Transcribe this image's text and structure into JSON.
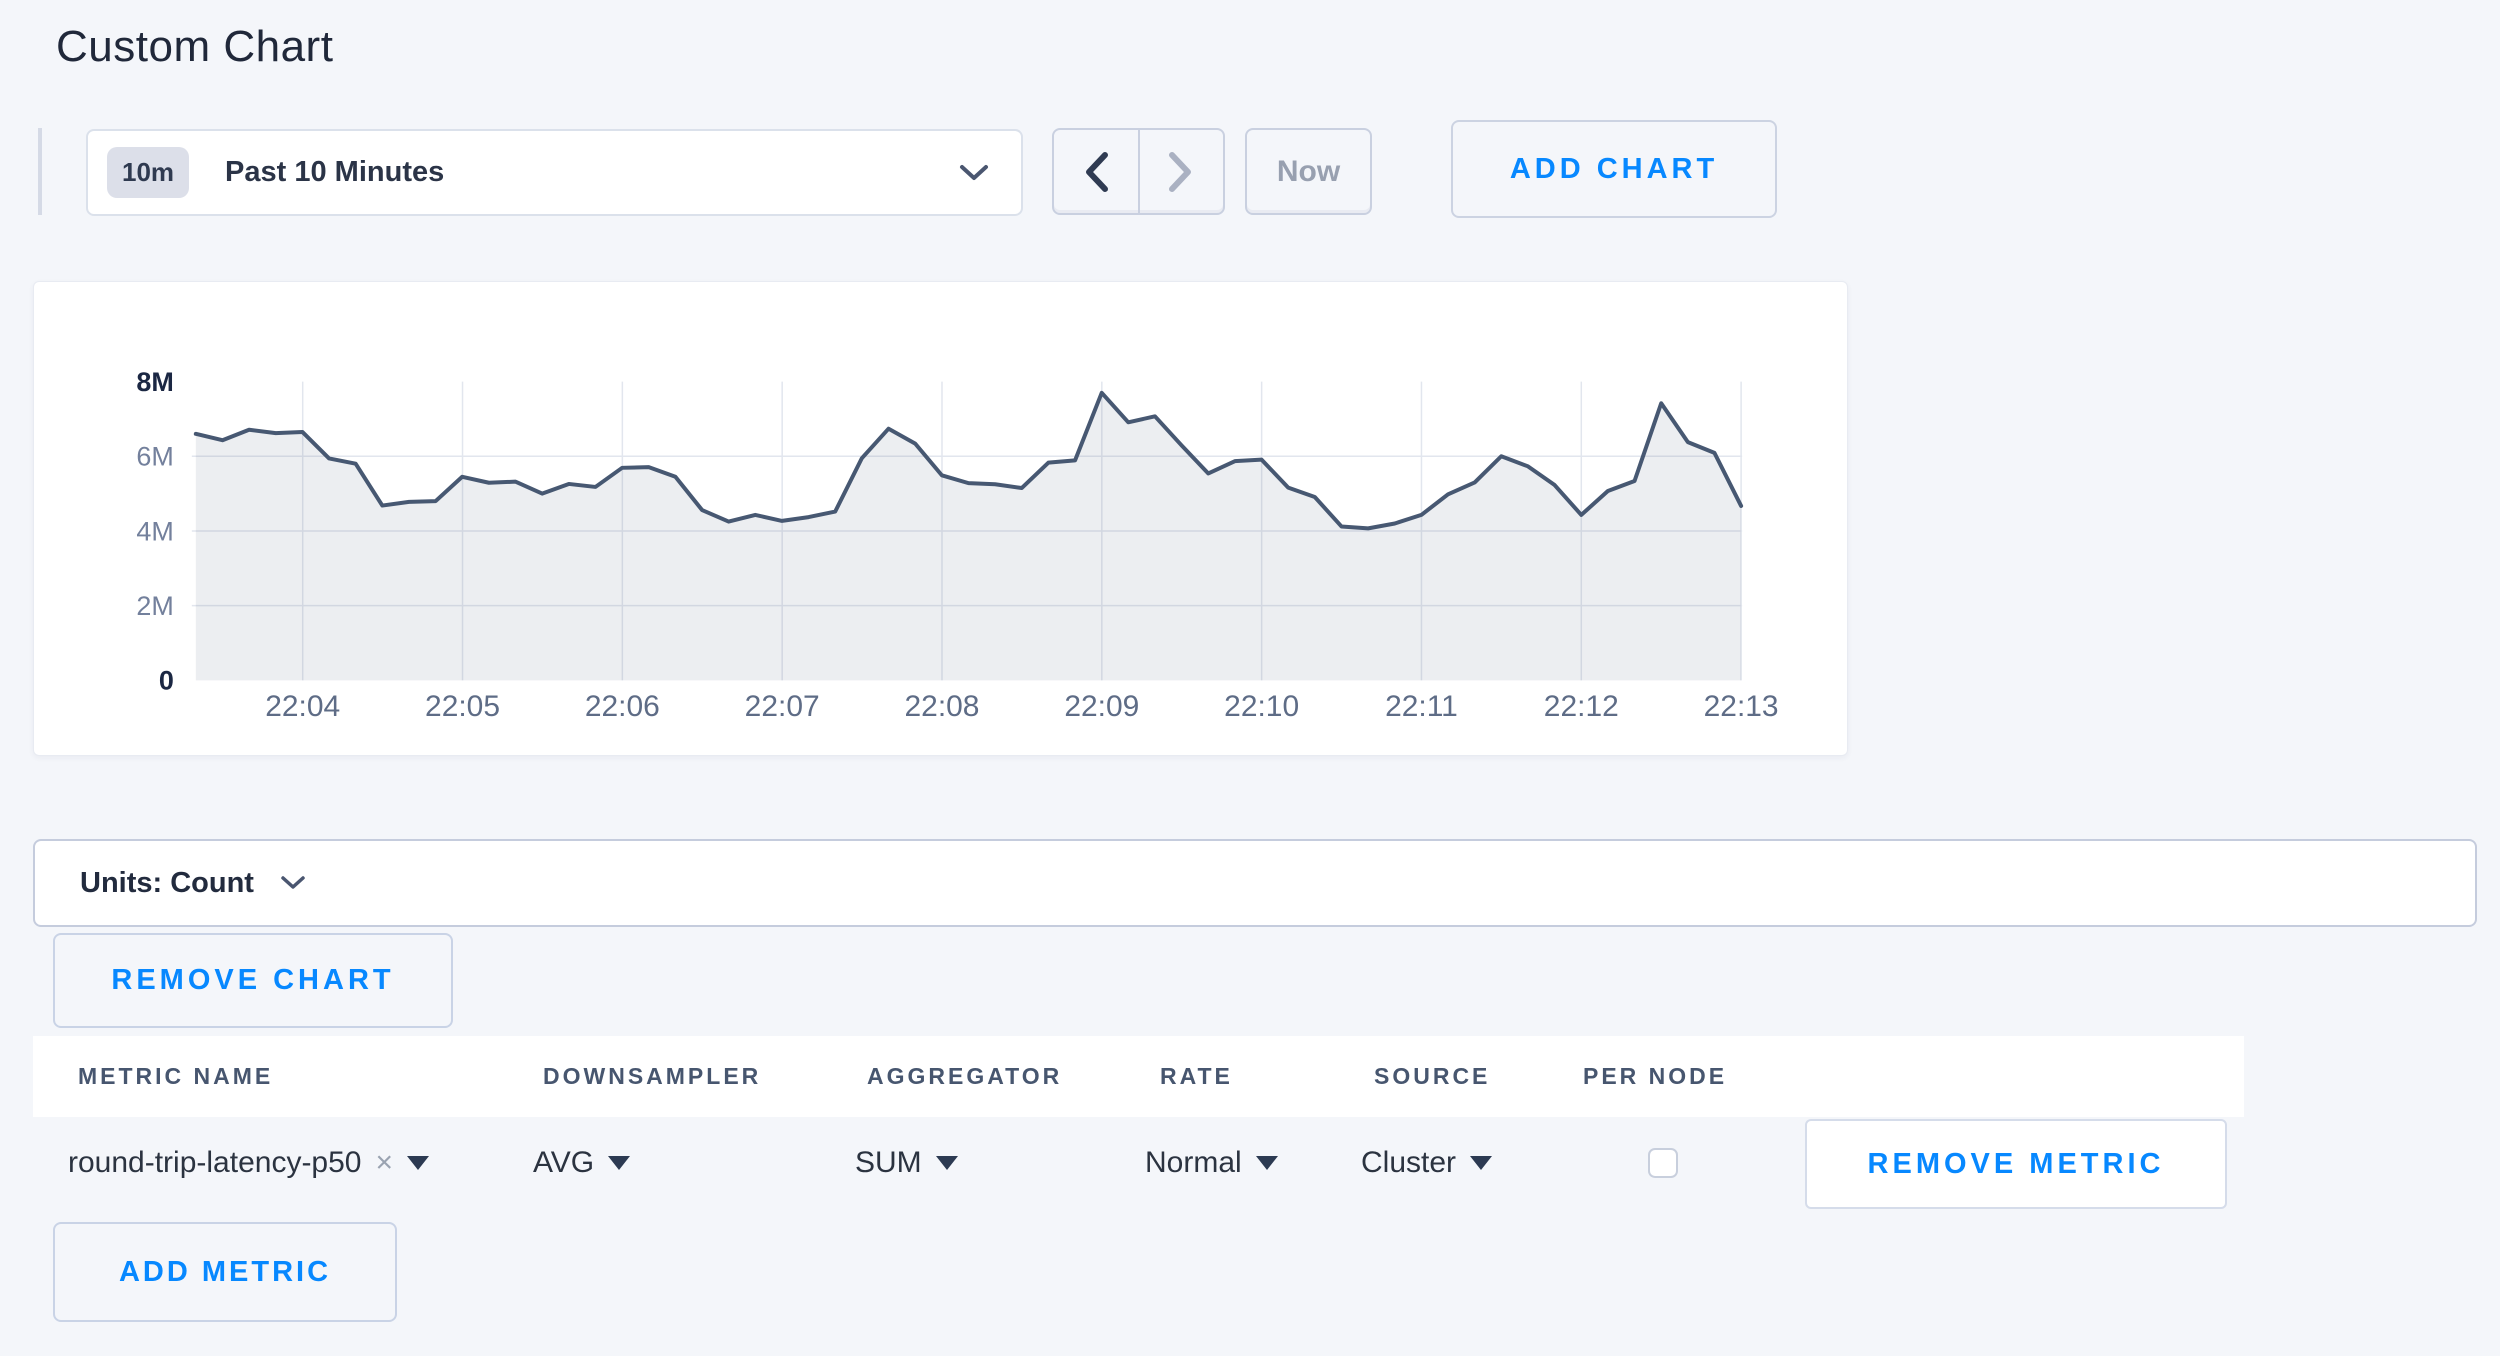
{
  "page": {
    "title": "Custom Chart"
  },
  "colors": {
    "accent_blue": "#0788ff",
    "page_background": "#f4f6fa",
    "line_color": "#475872",
    "fill_color": "rgba(71,88,114,0.10)",
    "grid_color": "#e2e6ee",
    "axis_label_strong": "#1b2743",
    "axis_label_muted": "#73809c",
    "tick_label": "#5e6c86"
  },
  "toolbar": {
    "range_badge": "10m",
    "range_label": "Past 10 Minutes",
    "prev_label": "previous time window",
    "next_label": "next time window",
    "now_label": "Now",
    "add_chart_label": "ADD CHART"
  },
  "units_bar": {
    "label": "Units: Count"
  },
  "remove_chart_label": "REMOVE CHART",
  "metric_table": {
    "headers": [
      "METRIC NAME",
      "DOWNSAMPLER",
      "AGGREGATOR",
      "RATE",
      "SOURCE",
      "PER NODE"
    ],
    "row": {
      "metric_name": "round-trip-latency-p50",
      "remove_x": "×",
      "downsampler": "AVG",
      "aggregator": "SUM",
      "rate": "Normal",
      "source": "Cluster",
      "per_node_checked": false,
      "remove_metric_label": "REMOVE METRIC"
    },
    "add_metric_label": "ADD METRIC"
  },
  "chart_data": {
    "type": "area",
    "title": "",
    "series_name": "round-trip-latency-p50",
    "unit": "count",
    "x_start": "22:03:20",
    "x_interval_seconds": 10,
    "x_tick_labels": [
      "22:04",
      "22:05",
      "22:06",
      "22:07",
      "22:08",
      "22:09",
      "22:10",
      "22:11",
      "22:12",
      "22:13"
    ],
    "y_tick_values": [
      0,
      2,
      4,
      6,
      8
    ],
    "y_tick_labels": [
      "0",
      "2M",
      "4M",
      "6M",
      "8M"
    ],
    "ylim": [
      0,
      8000000
    ],
    "grid": true,
    "legend": "none",
    "values_millions": [
      6.6,
      6.43,
      6.71,
      6.62,
      6.65,
      5.94,
      5.8,
      4.68,
      4.78,
      4.8,
      5.45,
      5.29,
      5.32,
      5.0,
      5.26,
      5.18,
      5.69,
      5.71,
      5.45,
      4.56,
      4.25,
      4.43,
      4.27,
      4.37,
      4.52,
      5.95,
      6.74,
      6.34,
      5.49,
      5.28,
      5.25,
      5.15,
      5.83,
      5.89,
      7.7,
      6.91,
      7.07,
      6.29,
      5.54,
      5.87,
      5.91,
      5.16,
      4.91,
      4.12,
      4.07,
      4.2,
      4.43,
      4.98,
      5.3,
      6.0,
      5.73,
      5.23,
      4.43,
      5.07,
      5.34,
      7.42,
      6.38,
      6.09,
      4.67
    ]
  }
}
